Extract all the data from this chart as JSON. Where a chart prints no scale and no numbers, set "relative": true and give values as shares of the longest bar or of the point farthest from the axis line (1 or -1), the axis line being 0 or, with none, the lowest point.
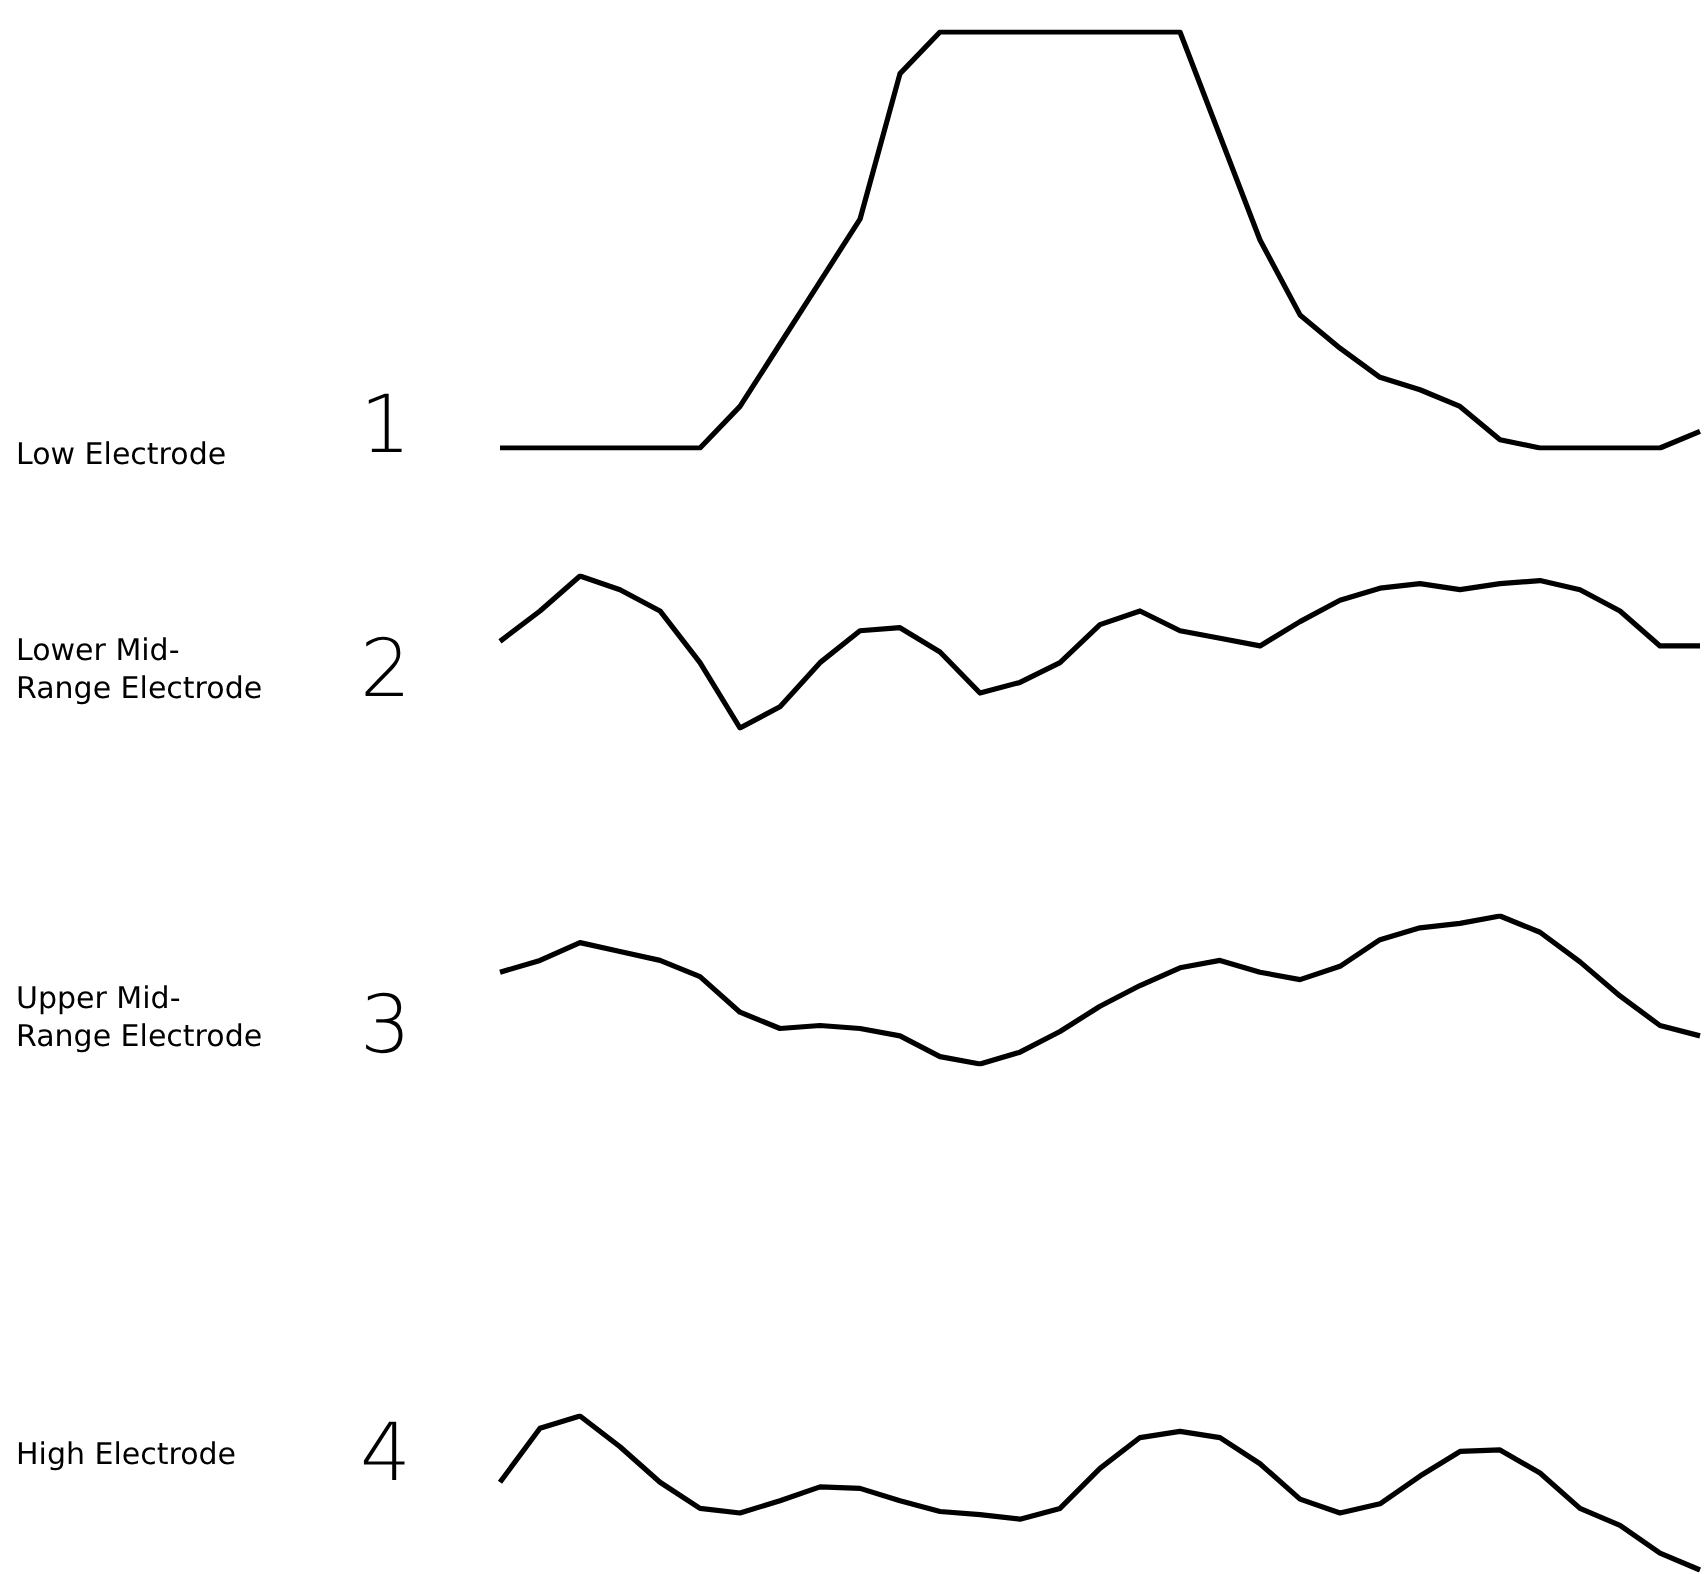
{
  "chart_data": [
    {
      "type": "line",
      "relative": true,
      "ylabel": "Low Electrode",
      "annotations": [
        "1"
      ],
      "categories": [
        null,
        null,
        null,
        null,
        null,
        null,
        null,
        null,
        null,
        null,
        null,
        null,
        null,
        null,
        null,
        null,
        null,
        null,
        null,
        null,
        null,
        null,
        null,
        null,
        null,
        null,
        null,
        null,
        null,
        null,
        null
      ],
      "series": [
        {
          "color": "#000000",
          "values": [
            0,
            0,
            0,
            0,
            0,
            0,
            0.1,
            0.25,
            0.4,
            0.55,
            0.9,
            1,
            1,
            1,
            1,
            1,
            1,
            1,
            0.75,
            0.5,
            0.32,
            0.24,
            0.17,
            0.14,
            0.1,
            0.02,
            0,
            0,
            0,
            0,
            0.04
          ]
        }
      ],
      "marker": "none"
    },
    {
      "type": "line",
      "relative": true,
      "ylabel": "Lower Mid-Range Electrode",
      "annotations": [
        "2"
      ],
      "categories": [
        null,
        null,
        null,
        null,
        null,
        null,
        null,
        null,
        null,
        null,
        null,
        null,
        null,
        null,
        null,
        null,
        null,
        null,
        null,
        null,
        null,
        null,
        null,
        null,
        null,
        null,
        null,
        null,
        null,
        null,
        null
      ],
      "series": [
        {
          "color": "#000000",
          "values": [
            0.57,
            0.77,
            1,
            0.91,
            0.77,
            0.43,
            0,
            0.14,
            0.43,
            0.64,
            0.66,
            0.5,
            0.23,
            0.3,
            0.43,
            0.68,
            0.77,
            0.64,
            0.59,
            0.54,
            0.7,
            0.84,
            0.92,
            0.95,
            0.91,
            0.95,
            0.97,
            0.91,
            0.77,
            0.54,
            0.54
          ]
        }
      ],
      "marker": "none"
    },
    {
      "type": "line",
      "relative": true,
      "ylabel": "Upper Mid-Range Electrode",
      "annotations": [
        "3"
      ],
      "categories": [
        null,
        null,
        null,
        null,
        null,
        null,
        null,
        null,
        null,
        null,
        null,
        null,
        null,
        null,
        null,
        null,
        null,
        null,
        null,
        null,
        null,
        null,
        null,
        null,
        null,
        null,
        null,
        null,
        null,
        null,
        null
      ],
      "series": [
        {
          "color": "#000000",
          "values": [
            0.62,
            0.7,
            0.82,
            0.76,
            0.7,
            0.59,
            0.35,
            0.24,
            0.26,
            0.24,
            0.19,
            0.05,
            0,
            0.08,
            0.22,
            0.39,
            0.53,
            0.65,
            0.7,
            0.62,
            0.57,
            0.66,
            0.84,
            0.92,
            0.95,
            1,
            0.89,
            0.69,
            0.46,
            0.26,
            0.19
          ]
        }
      ],
      "marker": "none"
    },
    {
      "type": "line",
      "relative": true,
      "ylabel": "High Electrode",
      "annotations": [
        "4"
      ],
      "categories": [
        null,
        null,
        null,
        null,
        null,
        null,
        null,
        null,
        null,
        null,
        null,
        null,
        null,
        null,
        null,
        null,
        null,
        null,
        null,
        null,
        null,
        null,
        null,
        null,
        null,
        null,
        null,
        null,
        null,
        null,
        null
      ],
      "series": [
        {
          "color": "#000000",
          "values": [
            0.57,
            0.92,
            1,
            0.8,
            0.57,
            0.4,
            0.37,
            0.45,
            0.54,
            0.53,
            0.45,
            0.38,
            0.36,
            0.33,
            0.4,
            0.66,
            0.86,
            0.9,
            0.86,
            0.69,
            0.46,
            0.37,
            0.43,
            0.61,
            0.77,
            0.78,
            0.63,
            0.4,
            0.29,
            0.11,
            0
          ]
        }
      ],
      "marker": "none"
    }
  ]
}
